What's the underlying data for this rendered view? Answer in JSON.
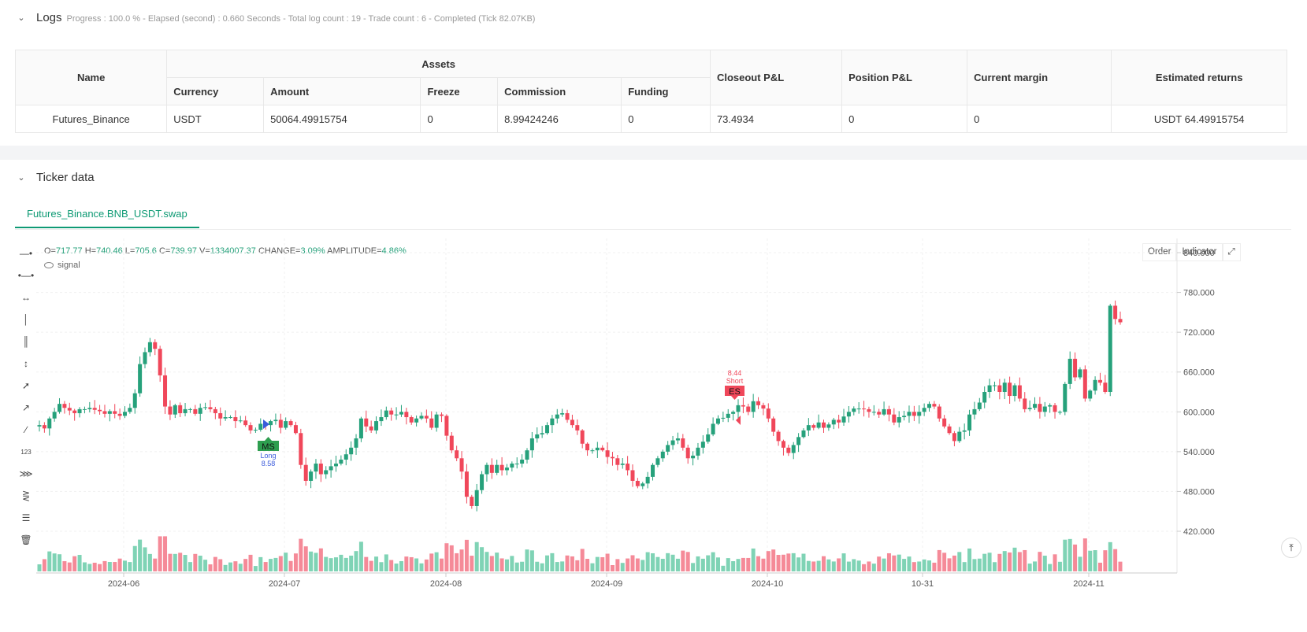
{
  "logs": {
    "title": "Logs",
    "meta": "Progress : 100.0 % - Elapsed (second) : 0.660   Seconds - Total log count : 19 - Trade count : 6 - Completed (Tick 82.07KB)",
    "table": {
      "header_name": "Name",
      "header_assets": "Assets",
      "sub_headers": [
        "Currency",
        "Amount",
        "Freeze",
        "Commission",
        "Funding"
      ],
      "header_closeout": "Closeout P&L",
      "header_position": "Position P&L",
      "header_margin": "Current margin",
      "header_returns": "Estimated returns",
      "row": {
        "name": "Futures_Binance",
        "currency": "USDT",
        "amount": "50064.49915754",
        "freeze": "0",
        "commission": "8.99424246",
        "funding": "0",
        "closeout": "73.4934",
        "position": "0",
        "margin": "0",
        "returns": "USDT 64.49915754"
      }
    }
  },
  "ticker": {
    "title": "Ticker data",
    "tab": "Futures_Binance.BNB_USDT.swap",
    "ohlc": {
      "o_label": "O=",
      "o": "717.77",
      "h_label": "H=",
      "h": "740.46",
      "l_label": "L=",
      "l": "705.6",
      "c_label": "C=",
      "c": "739.97",
      "v_label": "V=",
      "v": "1334007.37",
      "change_label": "CHANGE=",
      "change": "3.09%",
      "amp_label": "AMPLITUDE=",
      "amp": "4.86%"
    },
    "signal_label": "signal",
    "buttons": {
      "order": "Order",
      "indicator": "Indicator"
    },
    "colors": {
      "up": "#26a17b",
      "down": "#f0475a",
      "vol_up": "#7fd3b5",
      "vol_down": "#f58a98"
    }
  },
  "chart_data": {
    "type": "candlestick",
    "y_ticks": [
      "840.000",
      "780.000",
      "720.000",
      "660.000",
      "600.000",
      "540.000",
      "480.000",
      "420.000"
    ],
    "ylim": [
      398,
      860
    ],
    "x_ticks": [
      "2024-06",
      "2024-07",
      "2024-08",
      "2024-09",
      "2024-10",
      "10-31",
      "2024-11"
    ],
    "annotations": [
      {
        "label": "MS",
        "text": "Long",
        "value": "8.58"
      },
      {
        "label": "ES",
        "text": "Short",
        "value": "8.44"
      }
    ],
    "closes": [
      580,
      575,
      590,
      600,
      612,
      606,
      602,
      598,
      604,
      604,
      606,
      603,
      601,
      597,
      601,
      597,
      594,
      600,
      606,
      628,
      672,
      690,
      705,
      695,
      655,
      608,
      596,
      610,
      598,
      604,
      604,
      597,
      606,
      607,
      604,
      598,
      590,
      592,
      592,
      586,
      587,
      580,
      572,
      573,
      582,
      580,
      586,
      588,
      576,
      586,
      580,
      568,
      520,
      496,
      510,
      522,
      506,
      512,
      518,
      522,
      528,
      536,
      546,
      560,
      590,
      578,
      572,
      586,
      592,
      602,
      596,
      596,
      600,
      592,
      584,
      590,
      594,
      590,
      576,
      596,
      594,
      564,
      542,
      530,
      510,
      472,
      458,
      482,
      506,
      520,
      508,
      520,
      512,
      516,
      522,
      522,
      528,
      542,
      560,
      566,
      568,
      580,
      590,
      596,
      598,
      588,
      580,
      572,
      552,
      542,
      542,
      546,
      542,
      532,
      530,
      520,
      522,
      512,
      496,
      488,
      492,
      502,
      520,
      530,
      540,
      550,
      557,
      560,
      546,
      530,
      534,
      546,
      555,
      566,
      582,
      590,
      591,
      597,
      600,
      610,
      608,
      600,
      616,
      610,
      605,
      590,
      570,
      556,
      546,
      538,
      550,
      562,
      572,
      580,
      576,
      584,
      576,
      581,
      588,
      584,
      593,
      600,
      605,
      605,
      604,
      600,
      600,
      596,
      604,
      596,
      584,
      592,
      594,
      600,
      594,
      600,
      606,
      612,
      608,
      590,
      578,
      568,
      556,
      570,
      572,
      596,
      604,
      614,
      630,
      640,
      640,
      630,
      644,
      624,
      640,
      620,
      604,
      606,
      612,
      600,
      608,
      610,
      600,
      600,
      642,
      680,
      652,
      664,
      620,
      632,
      648,
      644,
      630,
      760,
      740,
      735
    ]
  }
}
